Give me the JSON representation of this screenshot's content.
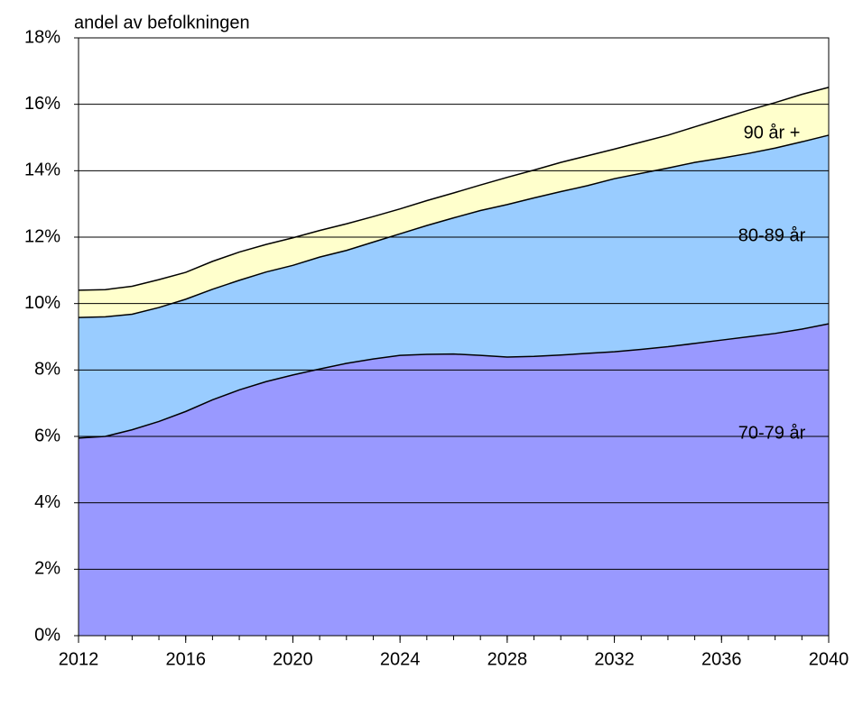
{
  "chart_data": {
    "type": "stacked_area",
    "y_label": "andel av befolkningen",
    "x": [
      2012,
      2013,
      2014,
      2015,
      2016,
      2017,
      2018,
      2019,
      2020,
      2021,
      2022,
      2023,
      2024,
      2025,
      2026,
      2027,
      2028,
      2029,
      2030,
      2031,
      2032,
      2033,
      2034,
      2035,
      2036,
      2037,
      2038,
      2039,
      2040
    ],
    "xlim": [
      2012,
      2040
    ],
    "xticks": [
      2012,
      2016,
      2020,
      2024,
      2028,
      2032,
      2036,
      2040
    ],
    "ylim": [
      0,
      18
    ],
    "yticks": [
      {
        "value": 0,
        "label": "0%"
      },
      {
        "value": 2,
        "label": "2%"
      },
      {
        "value": 4,
        "label": "4%"
      },
      {
        "value": 6,
        "label": "6%"
      },
      {
        "value": 8,
        "label": "8%"
      },
      {
        "value": 10,
        "label": "10%"
      },
      {
        "value": 12,
        "label": "12%"
      },
      {
        "value": 14,
        "label": "14%"
      },
      {
        "value": 16,
        "label": "16%"
      },
      {
        "value": 18,
        "label": "18%"
      }
    ],
    "grid": true,
    "series": [
      {
        "name": "70-79 år",
        "color": "#9999ff",
        "values": [
          5.95,
          6.0,
          6.2,
          6.45,
          6.75,
          7.1,
          7.4,
          7.65,
          7.85,
          8.03,
          8.2,
          8.33,
          8.44,
          8.47,
          8.48,
          8.44,
          8.39,
          8.41,
          8.45,
          8.5,
          8.55,
          8.62,
          8.7,
          8.8,
          8.9,
          9.0,
          9.1,
          9.23,
          9.39
        ]
      },
      {
        "name": "80-89 år",
        "color": "#99ccff",
        "values": [
          3.63,
          3.6,
          3.48,
          3.43,
          3.38,
          3.33,
          3.3,
          3.3,
          3.3,
          3.37,
          3.4,
          3.52,
          3.66,
          3.88,
          4.1,
          4.36,
          4.59,
          4.77,
          4.92,
          5.05,
          5.21,
          5.3,
          5.38,
          5.45,
          5.48,
          5.52,
          5.58,
          5.64,
          5.68
        ]
      },
      {
        "name": "90 år +",
        "color": "#ffffcc",
        "values": [
          0.82,
          0.82,
          0.84,
          0.84,
          0.81,
          0.84,
          0.85,
          0.83,
          0.83,
          0.8,
          0.8,
          0.77,
          0.75,
          0.75,
          0.75,
          0.77,
          0.82,
          0.84,
          0.88,
          0.9,
          0.89,
          0.94,
          0.99,
          1.07,
          1.19,
          1.3,
          1.37,
          1.43,
          1.44
        ]
      }
    ]
  }
}
